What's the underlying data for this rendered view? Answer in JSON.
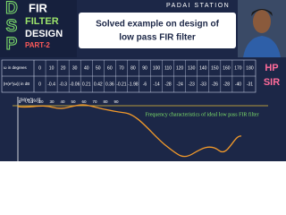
{
  "brand": {
    "letters": [
      "D",
      "S",
      "P"
    ],
    "line1": "FIR",
    "line2": "FILTER",
    "line3": "DESIGN",
    "part": "PART-2"
  },
  "channel": "PADAI STATION",
  "title": {
    "line1": "Solved example on design of",
    "line2": "low pass FIR filter"
  },
  "presenter": {
    "line1": "HP",
    "line2": "SIR"
  },
  "table": {
    "row_headers": [
      "ω in degrees",
      "|H(e^jω)| in dB"
    ],
    "rows": [
      [
        "0",
        "10",
        "20",
        "30",
        "40",
        "50",
        "60",
        "70",
        "80",
        "90",
        "100",
        "110",
        "120",
        "130",
        "140",
        "150",
        "160",
        "170",
        "180"
      ],
      [
        "0",
        "-0.4",
        "-0.3",
        "-0.06",
        "0.21",
        "0.42",
        "0.36",
        "-0.21",
        "-1.98",
        "-6",
        "-14",
        "-28",
        "-24",
        "-23",
        "-33",
        "-26",
        "-28",
        "-40",
        "-31"
      ]
    ]
  },
  "plot": {
    "y_label": "|H(e^jω)|",
    "caption": "Frequency characteristics of ideal low pass FIR filter",
    "x_labels": [
      "0",
      "10",
      "20",
      "30",
      "40",
      "50",
      "60",
      "70",
      "80",
      "90"
    ]
  }
}
